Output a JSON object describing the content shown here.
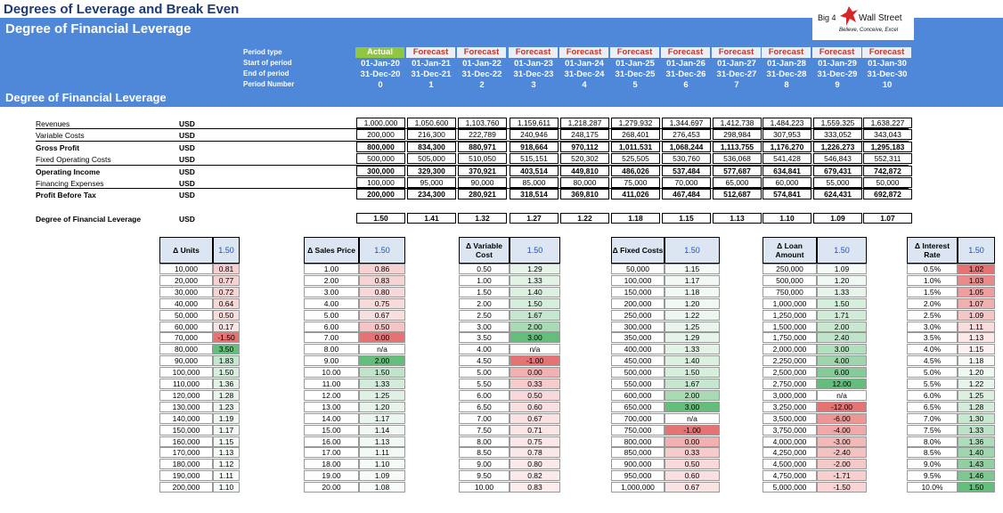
{
  "title": "Degrees of Leverage and Break Even",
  "subtitle": "Degree of Financial Leverage",
  "section_title": "Degree of Financial Leverage",
  "logo": {
    "text_left": "Big 4",
    "text_right": "Wall Street",
    "tagline": "Believe, Conceive, Excel"
  },
  "header_labels": {
    "period_type": "Period type",
    "start": "Start of period",
    "end": "End of period",
    "number": "Period Number"
  },
  "periods": [
    {
      "type": "Actual",
      "start": "01-Jan-20",
      "end": "31-Dec-20",
      "num": "0"
    },
    {
      "type": "Forecast",
      "start": "01-Jan-21",
      "end": "31-Dec-21",
      "num": "1"
    },
    {
      "type": "Forecast",
      "start": "01-Jan-22",
      "end": "31-Dec-22",
      "num": "2"
    },
    {
      "type": "Forecast",
      "start": "01-Jan-23",
      "end": "31-Dec-23",
      "num": "3"
    },
    {
      "type": "Forecast",
      "start": "01-Jan-24",
      "end": "31-Dec-24",
      "num": "4"
    },
    {
      "type": "Forecast",
      "start": "01-Jan-25",
      "end": "31-Dec-25",
      "num": "5"
    },
    {
      "type": "Forecast",
      "start": "01-Jan-26",
      "end": "31-Dec-26",
      "num": "6"
    },
    {
      "type": "Forecast",
      "start": "01-Jan-27",
      "end": "31-Dec-27",
      "num": "7"
    },
    {
      "type": "Forecast",
      "start": "01-Jan-28",
      "end": "31-Dec-28",
      "num": "8"
    },
    {
      "type": "Forecast",
      "start": "01-Jan-29",
      "end": "31-Dec-29",
      "num": "9"
    },
    {
      "type": "Forecast",
      "start": "01-Jan-30",
      "end": "31-Dec-30",
      "num": "10"
    }
  ],
  "rows": [
    {
      "label": "Revenues",
      "unit": "USD",
      "bold": false,
      "values": [
        "1,000,000",
        "1,050,600",
        "1,103,760",
        "1,159,611",
        "1,218,287",
        "1,279,932",
        "1,344,697",
        "1,412,738",
        "1,484,223",
        "1,559,325",
        "1,638,227"
      ]
    },
    {
      "label": "Variable Costs",
      "unit": "USD",
      "bold": false,
      "values": [
        "200,000",
        "216,300",
        "222,789",
        "240,946",
        "248,175",
        "268,401",
        "276,453",
        "298,984",
        "307,953",
        "333,052",
        "343,043"
      ]
    },
    {
      "label": "Gross Profit",
      "unit": "USD",
      "bold": true,
      "values": [
        "800,000",
        "834,300",
        "880,971",
        "918,664",
        "970,112",
        "1,011,531",
        "1,068,244",
        "1,113,755",
        "1,176,270",
        "1,226,273",
        "1,295,183"
      ]
    },
    {
      "label": "Fixed Operating Costs",
      "unit": "USD",
      "bold": false,
      "values": [
        "500,000",
        "505,000",
        "510,050",
        "515,151",
        "520,302",
        "525,505",
        "530,760",
        "536,068",
        "541,428",
        "546,843",
        "552,311"
      ]
    },
    {
      "label": "Operating Income",
      "unit": "USD",
      "bold": true,
      "values": [
        "300,000",
        "329,300",
        "370,921",
        "403,514",
        "449,810",
        "486,026",
        "537,484",
        "577,687",
        "634,841",
        "679,431",
        "742,872"
      ]
    },
    {
      "label": "Financing Expenses",
      "unit": "USD",
      "bold": false,
      "values": [
        "100,000",
        "95,000",
        "90,000",
        "85,000",
        "80,000",
        "75,000",
        "70,000",
        "65,000",
        "60,000",
        "55,000",
        "50,000"
      ]
    },
    {
      "label": "Profit Before Tax",
      "unit": "USD",
      "bold": true,
      "values": [
        "200,000",
        "234,300",
        "280,921",
        "318,514",
        "369,810",
        "411,026",
        "467,484",
        "512,687",
        "574,841",
        "624,431",
        "692,872"
      ]
    }
  ],
  "dfl": {
    "label": "Degree of Financial Leverage",
    "unit": "USD",
    "values": [
      "1.50",
      "1.41",
      "1.32",
      "1.27",
      "1.22",
      "1.18",
      "1.15",
      "1.13",
      "1.10",
      "1.09",
      "1.07"
    ]
  },
  "sensitivity": [
    {
      "head": "Δ Units",
      "base": "1.50",
      "inputs": [
        "10,000",
        "20,000",
        "30,000",
        "40,000",
        "50,000",
        "60,000",
        "70,000",
        "80,000",
        "90,000",
        "100,000",
        "110,000",
        "120,000",
        "130,000",
        "140,000",
        "150,000",
        "160,000",
        "170,000",
        "180,000",
        "190,000",
        "200,000"
      ],
      "outputs": [
        "0.81",
        "0.77",
        "0.72",
        "0.64",
        "0.50",
        "0.17",
        "-1.50",
        "3.50",
        "1.83",
        "1.50",
        "1.36",
        "1.28",
        "1.23",
        "1.19",
        "1.17",
        "1.15",
        "1.13",
        "1.12",
        "1.11",
        "1.10"
      ],
      "colors": [
        "#f6d0d0",
        "#f6d2d2",
        "#f6d4d4",
        "#f7d8d8",
        "#f8dddd",
        "#f9e5e5",
        "#e57373",
        "#63be7b",
        "#c6e7cf",
        "#d6eedc",
        "#e2f3e6",
        "#e8f5eb",
        "#edf7ef",
        "#f0f8f2",
        "#f2f9f4",
        "#f4faf5",
        "#f5fbf6",
        "#f6fbf7",
        "#f7fcf8",
        "#f8fcf9"
      ]
    },
    {
      "head": "Δ Sales Price",
      "base": "1.50",
      "inputs": [
        "1.00",
        "2.00",
        "3.00",
        "4.00",
        "5.00",
        "6.00",
        "7.00",
        "8.00",
        "9.00",
        "10.00",
        "11.00",
        "12.00",
        "13.00",
        "14.00",
        "15.00",
        "16.00",
        "17.00",
        "18.00",
        "19.00",
        "20.00"
      ],
      "outputs": [
        "0.86",
        "0.83",
        "0.80",
        "0.75",
        "0.67",
        "0.50",
        "0.00",
        "n/a",
        "2.00",
        "1.50",
        "1.33",
        "1.25",
        "1.20",
        "1.17",
        "1.14",
        "1.13",
        "1.11",
        "1.10",
        "1.09",
        "1.08"
      ],
      "colors": [
        "#f6d2d2",
        "#f6d4d4",
        "#f7d7d7",
        "#f7dada",
        "#f8dfdf",
        "#f5c4c4",
        "#e57373",
        "#ffffff",
        "#63be7b",
        "#bfe4c9",
        "#d3ecd9",
        "#dff1e3",
        "#e6f4e9",
        "#ebf6ee",
        "#eff8f1",
        "#f1f9f3",
        "#f3faf5",
        "#f5fbf6",
        "#f6fbf7",
        "#f7fcf8"
      ]
    },
    {
      "head": "Δ Variable Cost",
      "base": "1.50",
      "inputs": [
        "0.50",
        "1.00",
        "1.50",
        "2.00",
        "2.50",
        "3.00",
        "3.50",
        "4.00",
        "4.50",
        "5.00",
        "5.50",
        "6.00",
        "6.50",
        "7.00",
        "7.50",
        "8.00",
        "8.50",
        "9.00",
        "9.50",
        "10.00"
      ],
      "outputs": [
        "1.29",
        "1.33",
        "1.40",
        "1.50",
        "1.67",
        "2.00",
        "3.00",
        "n/a",
        "-1.00",
        "0.00",
        "0.33",
        "0.50",
        "0.60",
        "0.67",
        "0.71",
        "0.75",
        "0.78",
        "0.80",
        "0.82",
        "0.83"
      ],
      "colors": [
        "#e6f4e9",
        "#e2f3e6",
        "#dcf0e0",
        "#d6eedc",
        "#c6e7cf",
        "#a8dab4",
        "#63be7b",
        "#ffffff",
        "#e57373",
        "#f2b0b0",
        "#f6cbcb",
        "#f8d8d8",
        "#f9dfdf",
        "#f9e2e2",
        "#fae5e5",
        "#fae7e7",
        "#fae8e8",
        "#fbe9e9",
        "#fbeaea",
        "#fbebeb"
      ]
    },
    {
      "head": "Δ Fixed Costs",
      "base": "1.50",
      "inputs": [
        "50,000",
        "100,000",
        "150,000",
        "200,000",
        "250,000",
        "300,000",
        "350,000",
        "400,000",
        "450,000",
        "500,000",
        "550,000",
        "600,000",
        "650,000",
        "700,000",
        "750,000",
        "800,000",
        "850,000",
        "900,000",
        "950,000",
        "1,000,000"
      ],
      "outputs": [
        "1.15",
        "1.17",
        "1.18",
        "1.20",
        "1.22",
        "1.25",
        "1.29",
        "1.33",
        "1.40",
        "1.50",
        "1.67",
        "2.00",
        "3.00",
        "n/a",
        "-1.00",
        "0.00",
        "0.33",
        "0.50",
        "0.60",
        "0.67"
      ],
      "colors": [
        "#f4faf5",
        "#f2f9f4",
        "#f1f9f3",
        "#eff8f1",
        "#edf7ef",
        "#e9f5ec",
        "#e5f3e8",
        "#e2f3e6",
        "#dcf0e0",
        "#d6eedc",
        "#c6e7cf",
        "#a8dab4",
        "#63be7b",
        "#ffffff",
        "#e57373",
        "#f2b0b0",
        "#f6cbcb",
        "#f8d8d8",
        "#f9dfdf",
        "#f9e2e2"
      ]
    },
    {
      "head": "Δ Loan Amount",
      "base": "1.50",
      "inputs": [
        "250,000",
        "500,000",
        "750,000",
        "1,000,000",
        "1,250,000",
        "1,500,000",
        "1,750,000",
        "2,000,000",
        "2,250,000",
        "2,500,000",
        "2,750,000",
        "3,000,000",
        "3,250,000",
        "3,500,000",
        "3,750,000",
        "4,000,000",
        "4,250,000",
        "4,500,000",
        "4,750,000",
        "5,000,000"
      ],
      "outputs": [
        "1.09",
        "1.20",
        "1.33",
        "1.50",
        "1.71",
        "2.00",
        "2.40",
        "3.00",
        "4.00",
        "6.00",
        "12.00",
        "n/a",
        "-12.00",
        "-6.00",
        "-4.00",
        "-3.00",
        "-2.40",
        "-2.00",
        "-1.71",
        "-1.50"
      ],
      "colors": [
        "#f6fbf7",
        "#eff8f1",
        "#e5f3e8",
        "#d6eedc",
        "#d0ecd7",
        "#c8e8d0",
        "#bfe4c9",
        "#b2dfbd",
        "#9fd5ad",
        "#85cb97",
        "#63be7b",
        "#ffffff",
        "#e57373",
        "#ec9696",
        "#f0a8a8",
        "#f3b8b8",
        "#f5c2c2",
        "#f6c9c9",
        "#f7cfcf",
        "#f8d4d4"
      ]
    },
    {
      "head": "Δ Interest Rate",
      "base": "1.50",
      "inputs": [
        "0.5%",
        "1.0%",
        "1.5%",
        "2.0%",
        "2.5%",
        "3.0%",
        "3.5%",
        "4.0%",
        "4.5%",
        "5.0%",
        "5.5%",
        "6.0%",
        "6.5%",
        "7.0%",
        "7.5%",
        "8.0%",
        "8.5%",
        "9.0%",
        "9.5%",
        "10.0%"
      ],
      "outputs": [
        "1.02",
        "1.03",
        "1.05",
        "1.07",
        "1.09",
        "1.11",
        "1.13",
        "1.15",
        "1.18",
        "1.20",
        "1.22",
        "1.25",
        "1.28",
        "1.30",
        "1.33",
        "1.36",
        "1.40",
        "1.43",
        "1.46",
        "1.50"
      ],
      "colors": [
        "#e57373",
        "#ea8a8a",
        "#ee9e9e",
        "#f1b0b0",
        "#f5c6c6",
        "#f9dcdc",
        "#fce8e8",
        "#fdf0f0",
        "#f7fbf8",
        "#eef8f1",
        "#e6f4e9",
        "#dcf0e0",
        "#d3ecd9",
        "#c8e8d0",
        "#bce3c6",
        "#aedcba",
        "#a0d6ae",
        "#91cfa1",
        "#7ec793",
        "#63be7b"
      ]
    }
  ]
}
